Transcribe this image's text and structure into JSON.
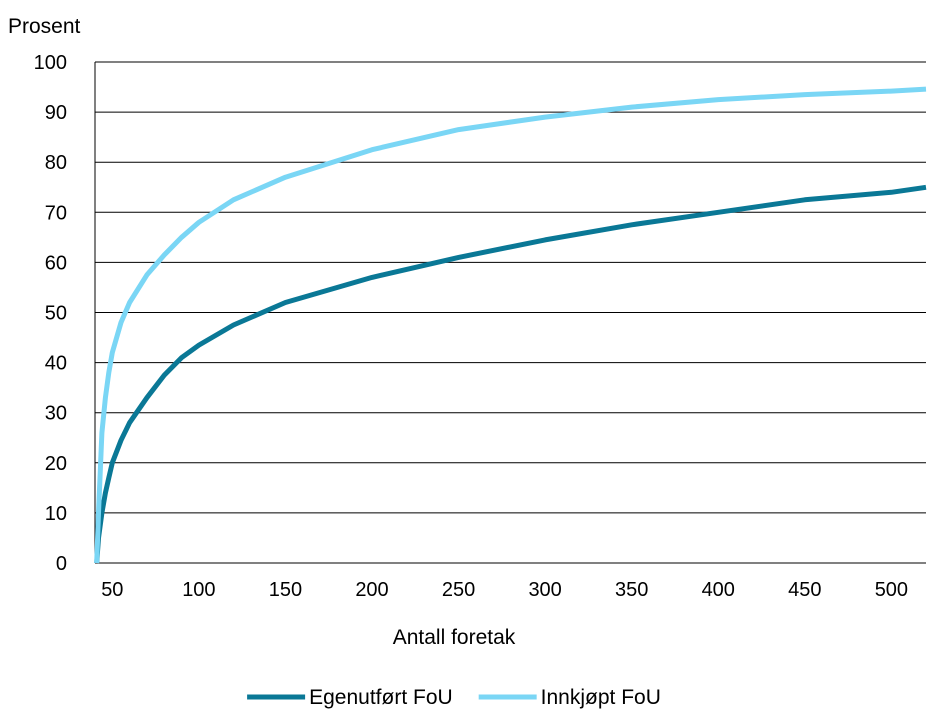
{
  "chart_data": {
    "type": "line",
    "title": "",
    "ylabel": "Prosent",
    "xlabel": "Antall foretak",
    "xlim": [
      40,
      520
    ],
    "ylim": [
      0,
      100
    ],
    "xticks": [
      "50",
      "100",
      "150",
      "200",
      "250",
      "300",
      "350",
      "400",
      "450",
      "500"
    ],
    "yticks": [
      "0",
      "10",
      "20",
      "30",
      "40",
      "50",
      "60",
      "70",
      "80",
      "90",
      "100"
    ],
    "grid": true,
    "legend": "bottom",
    "series": [
      {
        "name": "Egenutført FoU",
        "color": "#0a7896",
        "x": [
          41,
          42,
          44,
          46,
          48,
          50,
          55,
          60,
          70,
          80,
          90,
          100,
          120,
          150,
          200,
          250,
          300,
          350,
          400,
          450,
          500,
          520
        ],
        "y": [
          0,
          5,
          10,
          14,
          17,
          20,
          24.5,
          28,
          33,
          37.5,
          41,
          43.5,
          47.5,
          52,
          57,
          61,
          64.5,
          67.5,
          70,
          72.5,
          74,
          75
        ]
      },
      {
        "name": "Innkjøpt FoU",
        "color": "#7ad6f5",
        "x": [
          41,
          42,
          43,
          44,
          46,
          48,
          50,
          55,
          60,
          70,
          80,
          90,
          100,
          120,
          150,
          200,
          250,
          300,
          350,
          400,
          450,
          500,
          520
        ],
        "y": [
          0,
          10,
          18,
          26,
          33,
          38,
          42,
          48,
          52,
          57.5,
          61.5,
          65,
          68,
          72.5,
          77,
          82.5,
          86.5,
          89,
          91,
          92.5,
          93.5,
          94.2,
          94.6
        ]
      }
    ]
  }
}
